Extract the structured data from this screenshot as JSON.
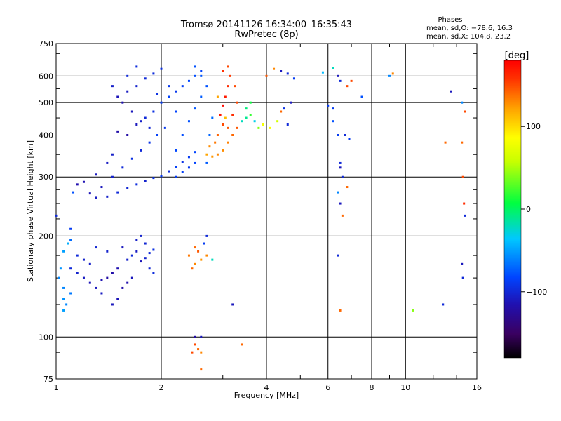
{
  "chart_data": {
    "type": "scatter",
    "title": "Tromsø 20141126 16:34:00–16:35:43",
    "subtitle": "RwPretec (8p)",
    "xlabel": "Frequency [MHz]",
    "ylabel": "Stationary phase Virtual Height [km]",
    "x_scale": "log",
    "y_scale": "log",
    "xlim": [
      1,
      16
    ],
    "ylim": [
      75,
      750
    ],
    "x_ticks": [
      1,
      2,
      4,
      6,
      8,
      10,
      16
    ],
    "x_tick_labels": [
      "1",
      "2",
      "4",
      "6",
      "8",
      "10",
      "16"
    ],
    "y_ticks": [
      75,
      100,
      200,
      300,
      400,
      500,
      600,
      750
    ],
    "y_tick_labels": [
      "75",
      "100",
      "200",
      "300",
      "400",
      "500",
      "600",
      "750"
    ],
    "grid": true,
    "phase_note": {
      "heading": "Phases",
      "line1": "mean, sd,O: −78.6, 16.3",
      "line2": "mean, sd,X: 104.8, 23.2"
    },
    "colorbar": {
      "title": "[deg]",
      "tick_labels": [
        "100",
        "0",
        "−100"
      ],
      "tick_values": [
        100,
        0,
        -100
      ],
      "range": [
        -180,
        180
      ],
      "colormap": "rainbow (black-purple-blue-cyan-green-yellow-orange-red)"
    },
    "series": [
      {
        "points": [
          [
            1.4,
            262,
            -105
          ],
          [
            1.5,
            270,
            -100
          ],
          [
            1.6,
            278,
            -102
          ],
          [
            1.7,
            285,
            -98
          ],
          [
            1.8,
            292,
            -104
          ],
          [
            1.9,
            298,
            -96
          ],
          [
            2.0,
            302,
            -92
          ],
          [
            2.1,
            312,
            -98
          ],
          [
            2.2,
            322,
            -88
          ],
          [
            2.3,
            332,
            -95
          ],
          [
            2.4,
            344,
            -90
          ],
          [
            2.5,
            356,
            -85
          ],
          [
            1.35,
            280,
            -110
          ],
          [
            1.45,
            300,
            -104
          ],
          [
            1.55,
            320,
            -100
          ],
          [
            1.65,
            340,
            -96
          ],
          [
            1.75,
            360,
            -100
          ],
          [
            1.85,
            380,
            -94
          ],
          [
            1.95,
            400,
            -88
          ],
          [
            2.05,
            420,
            -92
          ],
          [
            1.6,
            400,
            -120
          ],
          [
            1.5,
            410,
            -118
          ],
          [
            1.7,
            430,
            -110
          ],
          [
            1.8,
            450,
            -100
          ],
          [
            1.9,
            470,
            -96
          ],
          [
            2.0,
            500,
            -90
          ],
          [
            2.1,
            520,
            -86
          ],
          [
            2.2,
            540,
            -92
          ],
          [
            2.3,
            560,
            -88
          ],
          [
            2.4,
            580,
            -84
          ],
          [
            2.5,
            600,
            -82
          ],
          [
            2.6,
            620,
            -86
          ],
          [
            1.5,
            520,
            -112
          ],
          [
            1.6,
            540,
            -108
          ],
          [
            1.7,
            560,
            -104
          ],
          [
            1.8,
            590,
            -100
          ],
          [
            1.9,
            610,
            -98
          ],
          [
            2.0,
            630,
            -96
          ],
          [
            1.55,
            500,
            -114
          ],
          [
            1.65,
            470,
            -110
          ],
          [
            1.75,
            440,
            -106
          ],
          [
            1.85,
            420,
            -102
          ],
          [
            2.2,
            360,
            -84
          ],
          [
            2.3,
            400,
            -82
          ],
          [
            2.4,
            440,
            -80
          ],
          [
            2.5,
            480,
            -78
          ],
          [
            2.6,
            520,
            -76
          ],
          [
            2.7,
            560,
            -80
          ],
          [
            2.2,
            300,
            -90
          ],
          [
            2.3,
            310,
            -88
          ],
          [
            2.4,
            320,
            -92
          ],
          [
            2.5,
            330,
            -86
          ],
          [
            2.6,
            600,
            -78
          ],
          [
            2.5,
            640,
            -80
          ],
          [
            2.7,
            330,
            -76
          ],
          [
            2.75,
            400,
            -72
          ],
          [
            2.8,
            450,
            -70
          ],
          [
            2.2,
            470,
            -86
          ],
          [
            2.1,
            560,
            -92
          ],
          [
            1.95,
            530,
            -96
          ],
          [
            1.3,
            260,
            -108
          ],
          [
            1.25,
            268,
            -112
          ],
          [
            1.45,
            350,
            -106
          ],
          [
            1.4,
            330,
            -108
          ],
          [
            1.3,
            305,
            -110
          ],
          [
            1.2,
            290,
            -114
          ],
          [
            1.15,
            285,
            -116
          ],
          [
            1.6,
            600,
            -100
          ],
          [
            1.45,
            560,
            -106
          ],
          [
            1.7,
            640,
            -98
          ]
        ]
      },
      {
        "points": [
          [
            2.7,
            350,
            120
          ],
          [
            2.8,
            345,
            125
          ],
          [
            2.9,
            350,
            130
          ],
          [
            3.0,
            360,
            128
          ],
          [
            3.1,
            380,
            132
          ],
          [
            3.2,
            400,
            140
          ],
          [
            3.3,
            420,
            145
          ],
          [
            3.0,
            430,
            150
          ],
          [
            2.95,
            460,
            170
          ],
          [
            3.0,
            490,
            175
          ],
          [
            3.05,
            520,
            168
          ],
          [
            3.1,
            560,
            160
          ],
          [
            3.15,
            600,
            155
          ],
          [
            3.0,
            620,
            158
          ],
          [
            3.1,
            640,
            150
          ],
          [
            2.85,
            380,
            135
          ],
          [
            2.75,
            370,
            128
          ],
          [
            2.9,
            400,
            142
          ],
          [
            3.2,
            460,
            160
          ],
          [
            3.3,
            500,
            150
          ],
          [
            3.4,
            440,
            -20
          ],
          [
            3.5,
            450,
            -10
          ],
          [
            3.6,
            460,
            20
          ],
          [
            3.7,
            440,
            -30
          ],
          [
            3.8,
            420,
            40
          ],
          [
            3.9,
            430,
            80
          ],
          [
            3.6,
            500,
            10
          ],
          [
            3.5,
            480,
            -5
          ],
          [
            4.0,
            600,
            145
          ],
          [
            4.2,
            630,
            130
          ],
          [
            4.4,
            620,
            -110
          ],
          [
            4.6,
            610,
            -100
          ],
          [
            4.8,
            590,
            -90
          ],
          [
            4.1,
            420,
            80
          ],
          [
            4.3,
            440,
            60
          ],
          [
            4.5,
            480,
            -95
          ],
          [
            4.6,
            430,
            -100
          ],
          [
            4.7,
            500,
            -110
          ],
          [
            4.4,
            470,
            140
          ],
          [
            3.1,
            420,
            145
          ],
          [
            3.25,
            560,
            150
          ],
          [
            3.05,
            450,
            110
          ],
          [
            2.9,
            520,
            120
          ]
        ]
      },
      {
        "points": [
          [
            1.55,
            185,
            -110
          ],
          [
            1.6,
            170,
            -105
          ],
          [
            1.65,
            175,
            -100
          ],
          [
            1.7,
            180,
            -108
          ],
          [
            1.75,
            168,
            -112
          ],
          [
            1.8,
            172,
            -104
          ],
          [
            1.85,
            178,
            -100
          ],
          [
            1.9,
            182,
            -96
          ],
          [
            1.5,
            160,
            -115
          ],
          [
            1.45,
            155,
            -118
          ],
          [
            1.4,
            150,
            -120
          ],
          [
            1.35,
            148,
            -114
          ],
          [
            1.3,
            140,
            -110
          ],
          [
            1.25,
            145,
            -112
          ],
          [
            1.2,
            150,
            -108
          ],
          [
            1.15,
            155,
            -104
          ],
          [
            1.1,
            160,
            -100
          ],
          [
            1.7,
            195,
            -106
          ],
          [
            1.75,
            200,
            -104
          ],
          [
            1.8,
            190,
            -102
          ],
          [
            1.65,
            150,
            -110
          ],
          [
            1.6,
            145,
            -116
          ],
          [
            1.55,
            140,
            -118
          ],
          [
            1.85,
            160,
            -102
          ],
          [
            1.9,
            155,
            -98
          ],
          [
            1.5,
            130,
            -112
          ],
          [
            1.45,
            125,
            -110
          ],
          [
            1.35,
            135,
            -108
          ],
          [
            1.25,
            165,
            -106
          ],
          [
            1.2,
            170,
            -104
          ],
          [
            1.15,
            175,
            -100
          ],
          [
            1.3,
            185,
            -102
          ],
          [
            1.4,
            180,
            -104
          ],
          [
            1.05,
            140,
            -60
          ],
          [
            1.05,
            130,
            -55
          ],
          [
            1.05,
            120,
            -50
          ],
          [
            1.07,
            125,
            -60
          ],
          [
            1.1,
            135,
            -65
          ],
          [
            1.02,
            150,
            -60
          ],
          [
            1.03,
            160,
            -55
          ],
          [
            1.05,
            180,
            -50
          ],
          [
            1.08,
            190,
            -45
          ],
          [
            1.1,
            195,
            -70
          ],
          [
            1.1,
            210,
            -90
          ],
          [
            1.0,
            230,
            -100
          ],
          [
            1.12,
            270,
            -80
          ]
        ]
      },
      {
        "points": [
          [
            2.5,
            185,
            140
          ],
          [
            2.4,
            175,
            135
          ],
          [
            2.5,
            165,
            130
          ],
          [
            2.6,
            170,
            125
          ],
          [
            2.45,
            160,
            140
          ],
          [
            2.55,
            180,
            145
          ],
          [
            2.7,
            175,
            130
          ],
          [
            2.8,
            170,
            -20
          ],
          [
            2.65,
            190,
            -90
          ],
          [
            2.7,
            200,
            -100
          ],
          [
            2.5,
            95,
            150
          ],
          [
            2.55,
            92,
            140
          ],
          [
            2.6,
            90,
            130
          ],
          [
            2.45,
            90,
            150
          ],
          [
            2.5,
            100,
            -120
          ],
          [
            2.6,
            100,
            -110
          ],
          [
            2.6,
            80,
            140
          ],
          [
            3.2,
            125,
            -110
          ],
          [
            3.4,
            95,
            140
          ]
        ]
      },
      {
        "points": [
          [
            5.8,
            615,
            -40
          ],
          [
            6.2,
            635,
            -20
          ],
          [
            6.5,
            580,
            -100
          ],
          [
            6.8,
            560,
            150
          ],
          [
            6.2,
            440,
            -80
          ],
          [
            6.4,
            400,
            -90
          ],
          [
            6.6,
            300,
            -100
          ],
          [
            6.5,
            320,
            -110
          ],
          [
            6.4,
            270,
            -60
          ],
          [
            6.5,
            250,
            -110
          ],
          [
            6.6,
            230,
            140
          ],
          [
            6.9,
            390,
            -90
          ],
          [
            6.7,
            400,
            -100
          ],
          [
            6.5,
            330,
            -100
          ],
          [
            6.4,
            600,
            -110
          ],
          [
            6.2,
            480,
            -90
          ],
          [
            6.5,
            120,
            140
          ],
          [
            6.4,
            175,
            -100
          ],
          [
            6.8,
            280,
            140
          ],
          [
            7.0,
            580,
            150
          ],
          [
            7.5,
            520,
            -80
          ],
          [
            9.0,
            600,
            -60
          ],
          [
            9.2,
            610,
            130
          ],
          [
            10.5,
            120,
            40
          ],
          [
            12.8,
            125,
            -100
          ],
          [
            13.5,
            540,
            -110
          ],
          [
            14.5,
            500,
            -60
          ],
          [
            14.8,
            470,
            150
          ],
          [
            14.5,
            380,
            140
          ],
          [
            14.6,
            300,
            150
          ],
          [
            14.7,
            250,
            160
          ],
          [
            14.8,
            230,
            -100
          ],
          [
            14.5,
            165,
            -110
          ],
          [
            14.6,
            150,
            -100
          ],
          [
            6.0,
            490,
            -90
          ],
          [
            13.0,
            380,
            140
          ]
        ]
      }
    ]
  }
}
